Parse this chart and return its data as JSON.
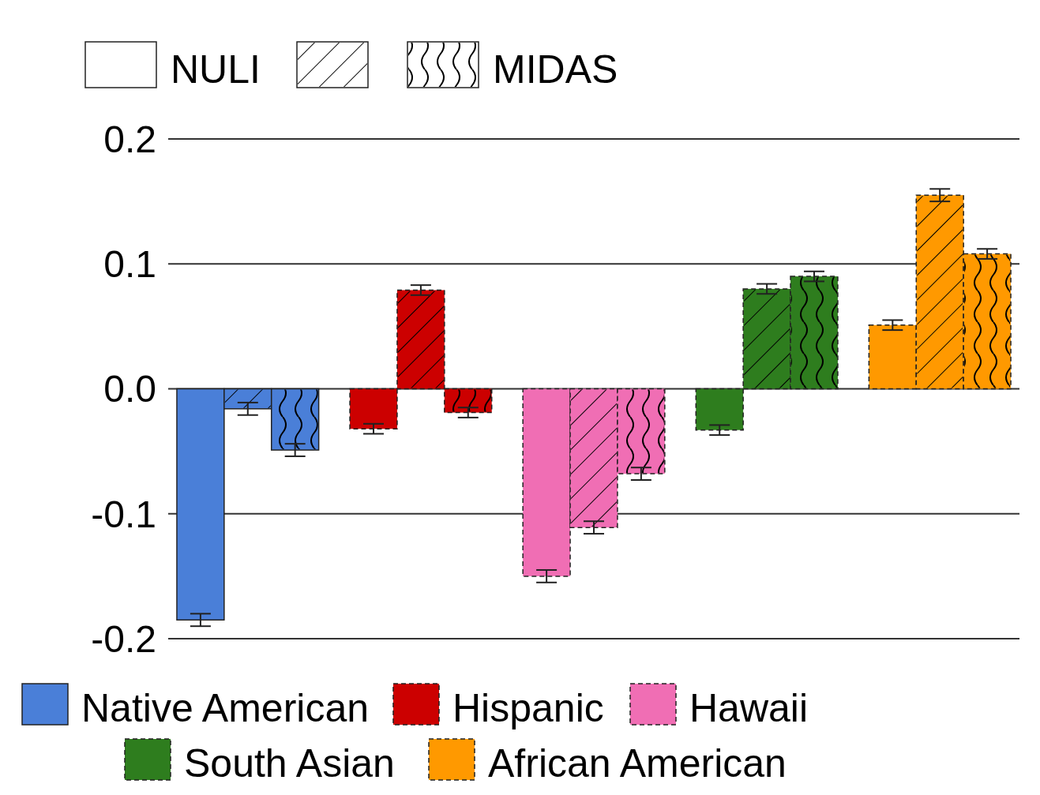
{
  "chart_data": {
    "type": "bar",
    "categories": [
      null,
      null,
      null,
      null,
      null
    ],
    "annotations": [
      "Native American",
      "Hispanic",
      "Hawaii",
      "South Asian",
      "African American"
    ],
    "series": [
      {
        "name": "NULI",
        "values": [
          -0.185,
          -0.032,
          -0.15,
          -0.033,
          0.051
        ],
        "errors": [
          0.005,
          0.004,
          0.005,
          0.004,
          0.004
        ],
        "colors": [
          "#4a7fd8",
          "#cc0000",
          "#f06eb4",
          "#2e7d1e",
          "#ff9900"
        ]
      },
      {
        "values": [
          -0.016,
          0.079,
          -0.111,
          0.08,
          0.155
        ],
        "errors": [
          0.005,
          0.004,
          0.005,
          0.004,
          0.005
        ],
        "colors": [
          "#4a7fd8",
          "#cc0000",
          "#f06eb4",
          "#2e7d1e",
          "#ff9900"
        ]
      },
      {
        "name": "MIDAS",
        "values": [
          -0.049,
          -0.019,
          -0.068,
          0.09,
          0.108
        ],
        "errors": [
          0.005,
          0.004,
          0.005,
          0.004,
          0.004
        ],
        "colors": [
          "#4a7fd8",
          "#cc0000",
          "#f06eb4",
          "#2e7d1e",
          "#ff9900"
        ]
      }
    ],
    "ylim": [
      -0.2,
      0.2
    ],
    "yticks": [
      {
        "value": -0.2,
        "label": "-0.2"
      },
      {
        "value": -0.1,
        "label": "-0.1"
      },
      {
        "value": 0,
        "label": "0.0"
      },
      0.1,
      0.2
    ],
    "grid": "y",
    "legend": "top",
    "tick_labels": "y"
  }
}
